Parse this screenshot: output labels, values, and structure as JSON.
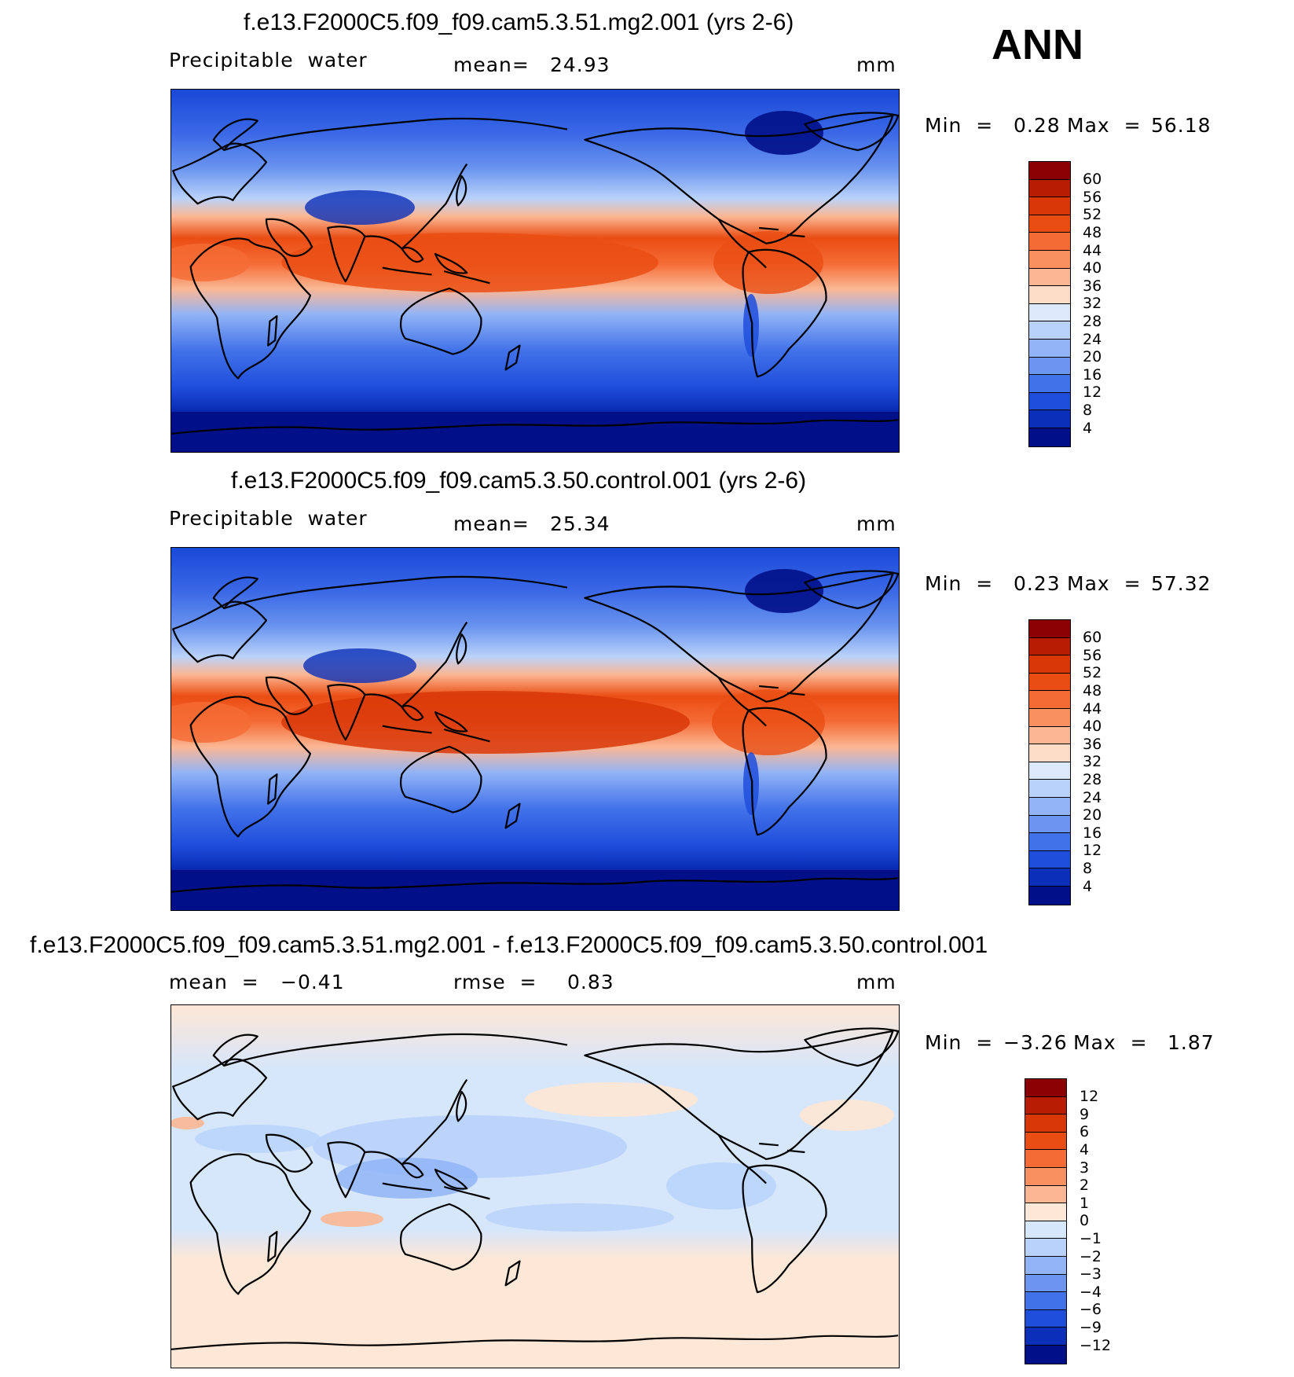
{
  "season": "ANN",
  "panels": [
    {
      "title": "f.e13.F2000C5.f09_f09.cam5.3.51.mg2.001 (yrs 2-6)",
      "variable": "Precipitable  water",
      "stat1_label": "mean=",
      "stat1_value": "24.93",
      "units": "mm",
      "min_label": "Min  =",
      "min_value": "0.28",
      "max_label": "Max  =",
      "max_value": "56.18"
    },
    {
      "title": "f.e13.F2000C5.f09_f09.cam5.3.50.control.001 (yrs 2-6)",
      "variable": "Precipitable  water",
      "stat1_label": "mean=",
      "stat1_value": "25.34",
      "units": "mm",
      "min_label": "Min  =",
      "min_value": "0.23",
      "max_label": "Max  =",
      "max_value": "57.32"
    },
    {
      "title": "f.e13.F2000C5.f09_f09.cam5.3.51.mg2.001 - f.e13.F2000C5.f09_f09.cam5.3.50.control.001",
      "stat1_label": "mean  =",
      "stat1_value": "−0.41",
      "stat2_label": "rmse  =",
      "stat2_value": "0.83",
      "units": "mm",
      "min_label": "Min  =",
      "min_value": "−3.26",
      "max_label": "Max  =",
      "max_value": "1.87"
    }
  ],
  "colorbar_field": {
    "labels": [
      "60",
      "56",
      "52",
      "48",
      "44",
      "40",
      "36",
      "32",
      "28",
      "24",
      "20",
      "16",
      "12",
      "8",
      "4"
    ],
    "colors": [
      "#8b0000",
      "#b81d04",
      "#d93708",
      "#ea4d13",
      "#f56b35",
      "#f99060",
      "#fbb794",
      "#fdddc7",
      "#dbe9fb",
      "#b9d2fb",
      "#92b4f6",
      "#6b95ef",
      "#4272e9",
      "#1f4edc",
      "#0b2fb8",
      "#011088"
    ]
  },
  "colorbar_diff": {
    "labels": [
      "12",
      "9",
      "6",
      "4",
      "3",
      "2",
      "1",
      "0",
      "−1",
      "−2",
      "−3",
      "−4",
      "−6",
      "−9",
      "−12"
    ],
    "colors": [
      "#8b0000",
      "#b81d04",
      "#d93708",
      "#ea4d13",
      "#f56b35",
      "#f99060",
      "#fbb794",
      "#fde7d6",
      "#d6e6fb",
      "#b9d2fb",
      "#92b4f6",
      "#6b95ef",
      "#4272e9",
      "#1f4edc",
      "#0b2fb8",
      "#011088"
    ]
  }
}
